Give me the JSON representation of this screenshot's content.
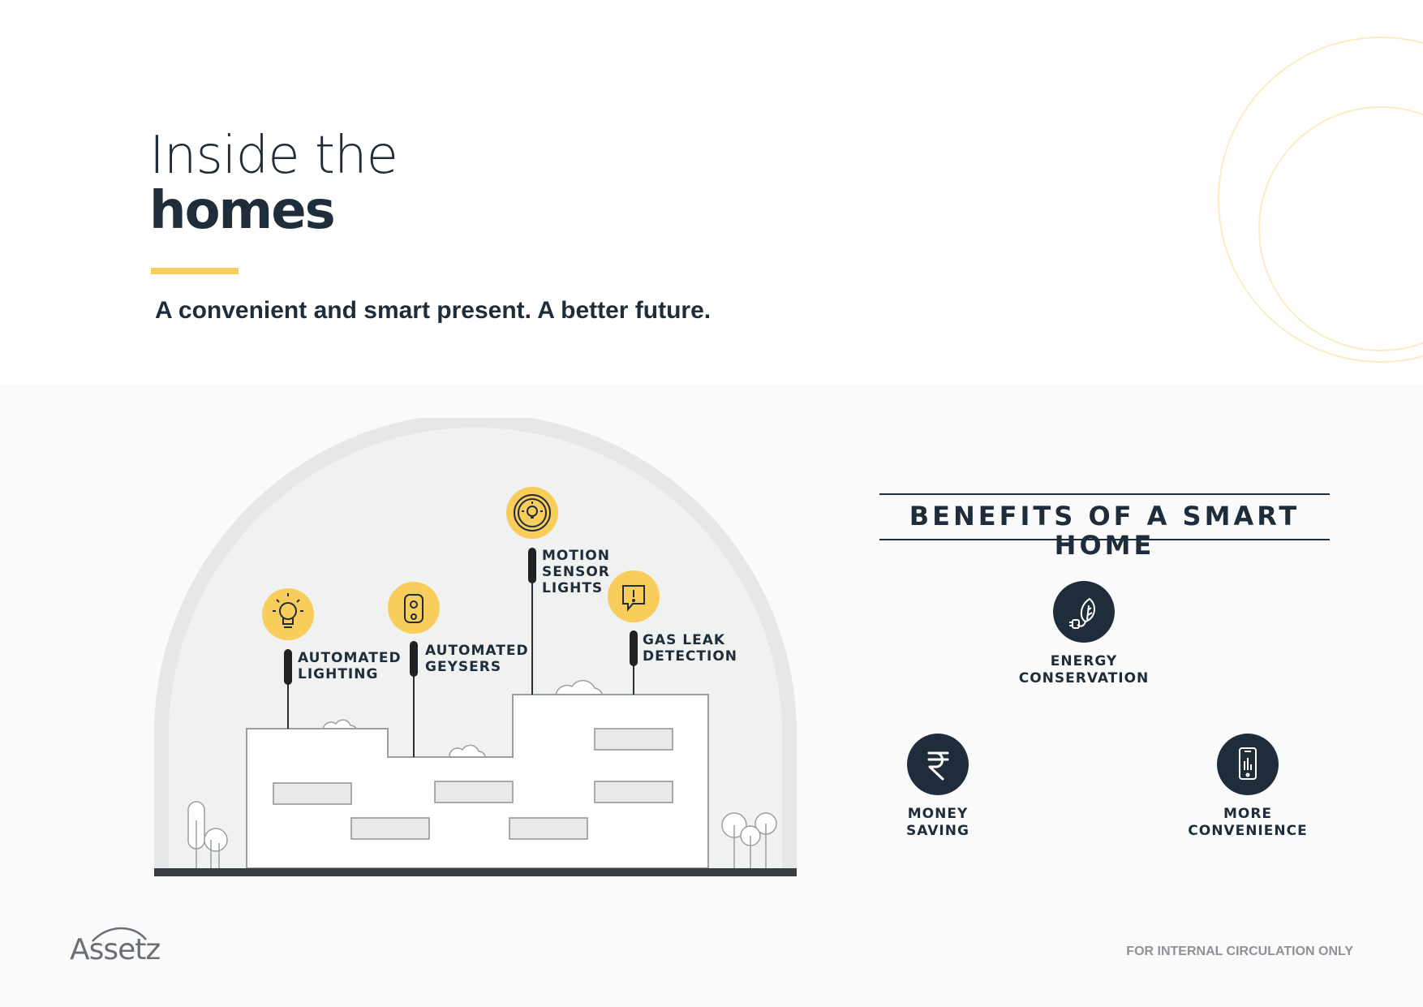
{
  "header": {
    "title_line1": "Inside the",
    "title_line2": "homes",
    "tagline": "A convenient and smart present. A better future."
  },
  "features": [
    {
      "label": "AUTOMATED\nLIGHTING",
      "icon": "light-bulb-icon"
    },
    {
      "label": "AUTOMATED\nGEYSERS",
      "icon": "geyser-icon"
    },
    {
      "label": "MOTION\nSENSOR\nLIGHTS",
      "icon": "motion-sensor-icon"
    },
    {
      "label": "GAS LEAK\nDETECTION",
      "icon": "alert-bubble-icon"
    }
  ],
  "benefits": {
    "title": "BENEFITS OF A SMART HOME",
    "items": [
      {
        "label": "ENERGY\nCONSERVATION",
        "icon": "leaf-plug-icon"
      },
      {
        "label": "MONEY\nSAVING",
        "icon": "rupee-icon"
      },
      {
        "label": "MORE\nCONVENIENCE",
        "icon": "smartphone-icon"
      }
    ]
  },
  "footer": {
    "brand": "Assetz",
    "note": "FOR INTERNAL CIRCULATION ONLY"
  },
  "colors": {
    "accent": "#f8cd5c",
    "navy": "#1f2d3a",
    "dome": "#e6e7e9",
    "footer_text": "#8e9197"
  }
}
